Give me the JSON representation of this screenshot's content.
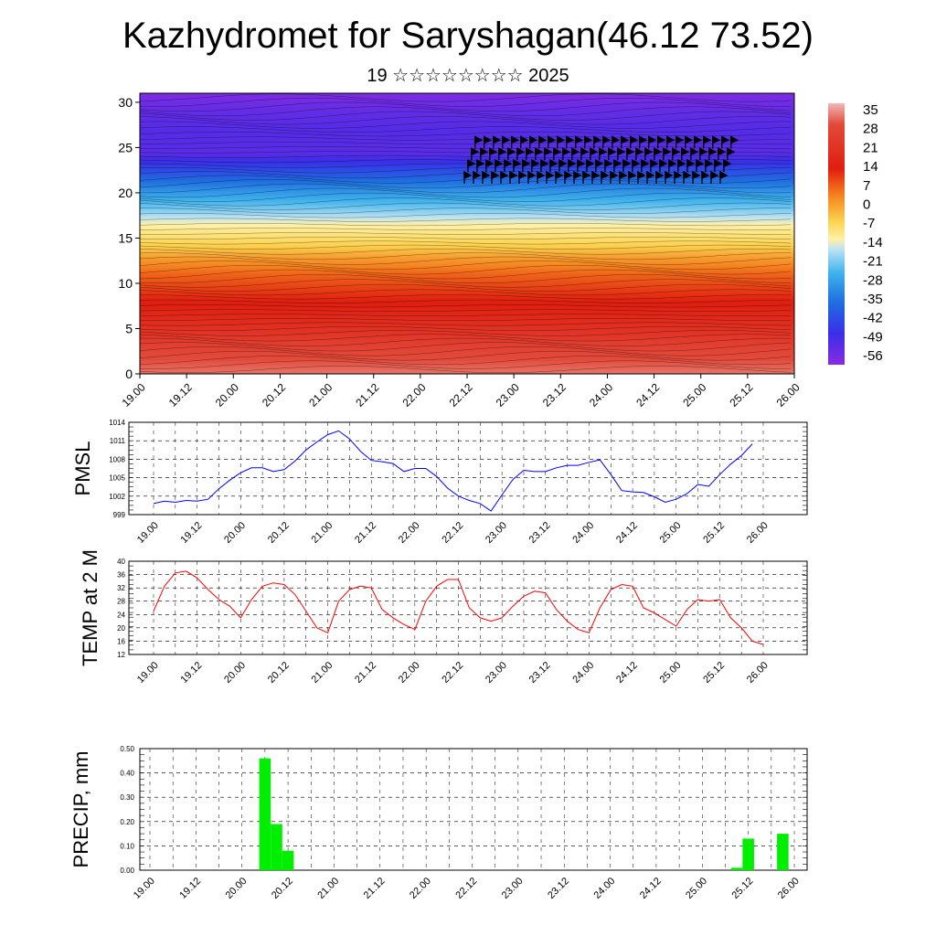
{
  "title": "Kazhydromet for Saryshagan(46.12 73.52)",
  "subtitle": "19 ☆☆☆☆☆☆☆☆ 2025",
  "x_tick_labels": [
    "19.00",
    "19.12",
    "20.00",
    "20.12",
    "21.00",
    "21.12",
    "22.00",
    "22.12",
    "23.00",
    "23.12",
    "24.00",
    "24.12",
    "25.00",
    "25.12",
    "26.00"
  ],
  "chart_data": [
    {
      "type": "heatmap",
      "xlabel": "",
      "ylabel": "",
      "x": [
        "19.00",
        "19.12",
        "20.00",
        "20.12",
        "21.00",
        "21.12",
        "22.00",
        "22.12",
        "23.00",
        "23.12",
        "24.00",
        "24.12",
        "25.00",
        "25.12",
        "26.00"
      ],
      "ylim": [
        0,
        31
      ],
      "y_ticks": [
        0,
        5,
        10,
        15,
        20,
        25,
        30
      ],
      "colorbar_labels": [
        "35",
        "28",
        "21",
        "14",
        "7",
        "0",
        "-7",
        "-14",
        "-21",
        "-28",
        "-35",
        "-42",
        "-49",
        "-56"
      ],
      "colorbar_range": [
        -60,
        38
      ],
      "temperature_profile": [
        {
          "y": 0,
          "t": 35
        },
        {
          "y": 2.5,
          "t": 32
        },
        {
          "y": 5,
          "t": 28
        },
        {
          "y": 8,
          "t": 24
        },
        {
          "y": 11,
          "t": 17
        },
        {
          "y": 13,
          "t": 10
        },
        {
          "y": 15,
          "t": 0
        },
        {
          "y": 16.5,
          "t": -8
        },
        {
          "y": 18,
          "t": -18
        },
        {
          "y": 20,
          "t": -28
        },
        {
          "y": 22,
          "t": -40
        },
        {
          "y": 24.5,
          "t": -53
        },
        {
          "y": 27,
          "t": -52
        },
        {
          "y": 29,
          "t": -54
        },
        {
          "y": 31,
          "t": -58
        }
      ]
    },
    {
      "type": "line",
      "ylabel": "PMSL",
      "ylim": [
        999,
        1014
      ],
      "y_ticks": [
        999,
        1002,
        1005,
        1008,
        1011,
        1014
      ],
      "line_color": "#0000ff",
      "series": [
        {
          "x_step_hours": 3,
          "values": [
            1000.8,
            1001.2,
            1001.0,
            1001.3,
            1001.2,
            1001.5,
            1003.2,
            1004.6,
            1005.8,
            1006.6,
            1006.6,
            1006.0,
            1006.3,
            1007.7,
            1009.5,
            1010.8,
            1012.0,
            1012.6,
            1011.3,
            1009.3,
            1007.8,
            1007.6,
            1007.3,
            1006.0,
            1006.5,
            1006.5,
            1005.2,
            1003.3,
            1002.0,
            1001.3,
            1000.8,
            999.6,
            1002.2,
            1004.7,
            1006.2,
            1006.0,
            1006.0,
            1006.6,
            1007.0,
            1007.0,
            1007.5,
            1007.9,
            1005.5,
            1002.9,
            1002.7,
            1002.6,
            1001.9,
            1001.0,
            1001.5,
            1002.4,
            1003.9,
            1003.6,
            1005.5,
            1007.2,
            1008.6,
            1010.5
          ]
        }
      ]
    },
    {
      "type": "line",
      "ylabel": "TEMP at 2 M",
      "ylim": [
        12,
        40
      ],
      "y_ticks": [
        12,
        16,
        20,
        24,
        28,
        32,
        36,
        40
      ],
      "line_color": "#ff0000",
      "series": [
        {
          "x_step_hours": 3,
          "values": [
            25,
            32.5,
            36.5,
            37,
            35,
            31.5,
            28.5,
            26.5,
            23,
            28.5,
            32.5,
            33.5,
            33,
            30,
            25,
            20,
            18.5,
            28,
            31.5,
            32.5,
            32,
            25.5,
            23,
            21,
            19.5,
            28,
            32.5,
            34.5,
            34.5,
            26,
            23,
            22,
            23,
            26.5,
            29.5,
            31,
            30.5,
            25.5,
            22,
            19.5,
            18.5,
            26,
            31.5,
            33,
            32.5,
            26,
            24.5,
            22.5,
            20.5,
            25.5,
            28.5,
            28,
            28.5,
            23,
            20,
            16,
            15
          ]
        }
      ]
    },
    {
      "type": "bar",
      "ylabel": "PRECIP, mm",
      "ylim": [
        0,
        0.5
      ],
      "y_ticks": [
        "0.00",
        "0.10",
        "0.20",
        "0.30",
        "0.40",
        "0.50"
      ],
      "bar_color": "#00ee00",
      "bars": [
        {
          "x_hours": 30,
          "value": 0.46
        },
        {
          "x_hours": 33,
          "value": 0.19
        },
        {
          "x_hours": 36,
          "value": 0.08
        },
        {
          "x_hours": 153,
          "value": 0.01
        },
        {
          "x_hours": 156,
          "value": 0.13
        },
        {
          "x_hours": 165,
          "value": 0.15
        }
      ]
    }
  ]
}
